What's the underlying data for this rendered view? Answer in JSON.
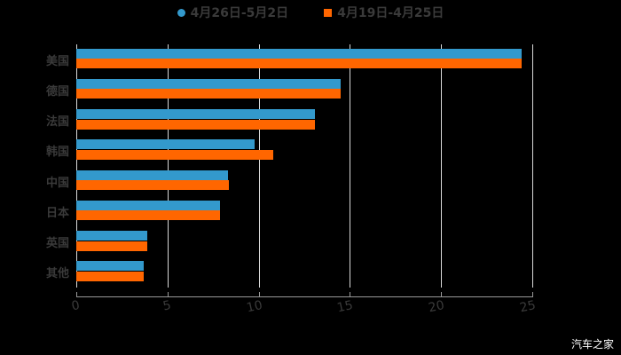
{
  "chart_data": {
    "type": "bar",
    "orientation": "horizontal",
    "title": "",
    "xlabel": "",
    "ylabel": "",
    "categories": [
      "美国",
      "德国",
      "法国",
      "韩国",
      "中国",
      "日本",
      "英国",
      "其他"
    ],
    "series": [
      {
        "name": "4月26日-5月2日",
        "color": "#3399cc",
        "values": [
          24.4,
          14.5,
          13.1,
          9.8,
          8.3,
          7.9,
          3.9,
          3.7
        ]
      },
      {
        "name": "4月19日-4月25日",
        "color": "#ff6600",
        "values": [
          24.4,
          14.5,
          13.1,
          10.8,
          8.35,
          7.9,
          3.9,
          3.7
        ]
      }
    ],
    "xlim": [
      0,
      25
    ],
    "xticks": [
      "0",
      "5",
      "10",
      "15",
      "20",
      "25"
    ],
    "grid": true,
    "legend_position": "top"
  },
  "legend": {
    "item0": "4月26日-5月2日",
    "item1": "4月19日-4月25日"
  },
  "watermark": "汽车之家"
}
